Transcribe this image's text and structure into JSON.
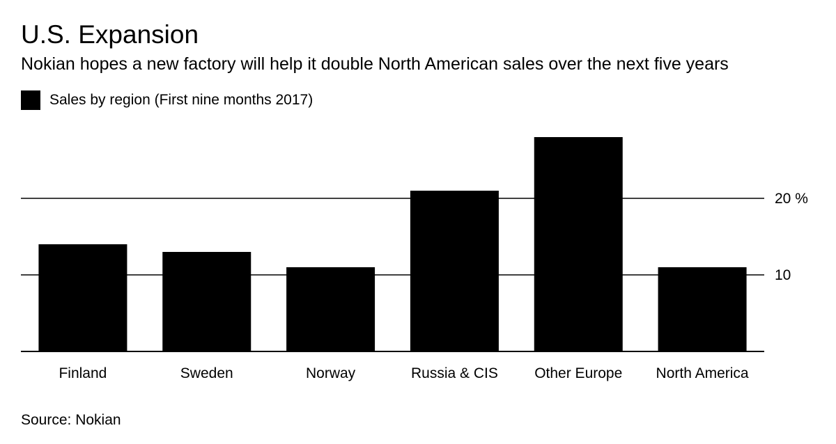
{
  "title": "U.S. Expansion",
  "subtitle": "Nokian hopes a new factory will help it double North American sales over the next five years",
  "source": "Source: Nokian",
  "chart_data": {
    "type": "bar",
    "title": "U.S. Expansion",
    "subtitle": "Nokian hopes a new factory will help it double North American sales over the next five years",
    "categories": [
      "Finland",
      "Sweden",
      "Norway",
      "Russia & CIS",
      "Other Europe",
      "North America"
    ],
    "series": [
      {
        "name": "Sales by region (First nine months 2017)",
        "color": "#000000",
        "values": [
          14,
          13,
          11,
          21,
          28,
          11
        ]
      }
    ],
    "y_ticks": [
      {
        "value": 10,
        "label": "10"
      },
      {
        "value": 20,
        "label": "20 %"
      }
    ],
    "ylim": [
      0,
      28
    ],
    "grid": true,
    "y_axis_position": "right",
    "legend_position": "top-left",
    "xlabel": "",
    "ylabel": ""
  }
}
